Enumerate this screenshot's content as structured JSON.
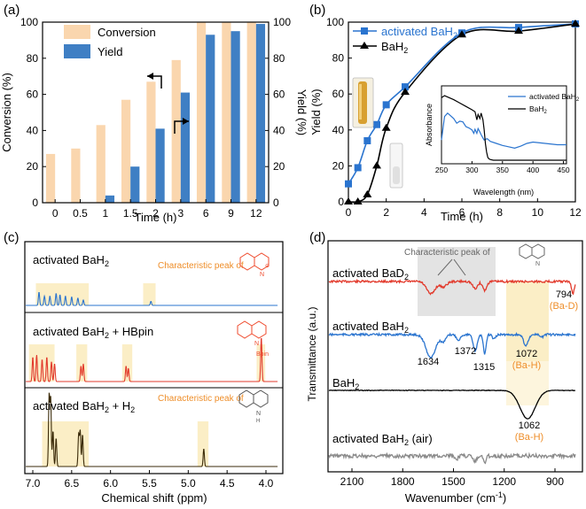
{
  "colors": {
    "conversion": "#fad6ae",
    "yield": "#3f7fc4",
    "blue_line": "#2a74cf",
    "red_line": "#e23a2c",
    "black_line": "#000000",
    "gray_line": "#8a8a8a",
    "highlight": "#fbeec6",
    "orange_text": "#ee8d28",
    "dark_brown": "#3a2a08",
    "orange_peak": "#ef4a2c"
  },
  "chart_data": [
    {
      "panel": "(a)",
      "type": "bar",
      "categories": [
        "0",
        "0.5",
        "1",
        "1.5",
        "2",
        "3",
        "6",
        "9",
        "12"
      ],
      "series": [
        {
          "name": "Conversion",
          "values": [
            27,
            30,
            43,
            57,
            67,
            79,
            100,
            100,
            100
          ]
        },
        {
          "name": "Yield",
          "values": [
            0,
            0,
            4,
            20,
            41,
            61,
            93,
            95,
            99
          ]
        }
      ],
      "xlabel": "Time (h)",
      "ylabel_left": "Conversion (%)",
      "ylabel_right": "Yield (%)",
      "ylim": [
        0,
        100
      ],
      "yticks": [
        "0",
        "20",
        "40",
        "60",
        "80",
        "100"
      ]
    },
    {
      "panel": "(b)",
      "type": "line",
      "series": [
        {
          "name": "activated BaH",
          "sub": "2",
          "x": [
            0,
            0.5,
            1,
            1.5,
            2,
            3,
            6,
            9,
            12
          ],
          "y": [
            10,
            19,
            34,
            43,
            54,
            64,
            94,
            97,
            99
          ]
        },
        {
          "name": "BaH",
          "sub": "2",
          "x": [
            0,
            0.5,
            1,
            1.5,
            2,
            3,
            6,
            9,
            12
          ],
          "y": [
            0,
            0,
            4,
            20,
            41,
            61,
            93,
            95,
            99
          ]
        }
      ],
      "xlabel": "Time (h)",
      "ylabel": "Yield (%)",
      "xlim": [
        0,
        12
      ],
      "ylim": [
        0,
        100
      ],
      "xticks": [
        "0",
        "2",
        "4",
        "6",
        "8",
        "10",
        "12"
      ],
      "yticks": [
        "0",
        "20",
        "40",
        "60",
        "80",
        "100"
      ],
      "inset": {
        "type": "line",
        "xlabel": "Wavelength (nm)",
        "ylabel": "Absorbance",
        "xlim": [
          250,
          455
        ],
        "xticks": [
          "250",
          "300",
          "350",
          "400",
          "450"
        ],
        "series": [
          {
            "name": "activated BaH",
            "sub": "2",
            "x": [
              250,
              255,
              260,
              265,
              270,
              275,
              280,
              285,
              290,
              295,
              300,
              303,
              305,
              308,
              310,
              313,
              315,
              318,
              320,
              322,
              325,
              330,
              340,
              350,
              360,
              370,
              380,
              390,
              400,
              410,
              420,
              430,
              440,
              450,
              455
            ],
            "y": [
              0.3,
              0.65,
              0.7,
              0.66,
              0.62,
              0.55,
              0.58,
              0.57,
              0.5,
              0.48,
              0.45,
              0.4,
              0.46,
              0.4,
              0.47,
              0.42,
              0.38,
              0.33,
              0.3,
              0.31,
              0.32,
              0.28,
              0.25,
              0.22,
              0.2,
              0.18,
              0.21,
              0.25,
              0.27,
              0.26,
              0.25,
              0.24,
              0.23,
              0.23,
              0.23
            ]
          },
          {
            "name": "BaH",
            "sub": "2",
            "x": [
              250,
              255,
              260,
              265,
              270,
              280,
              290,
              300,
              305,
              308,
              310,
              313,
              315,
              318,
              320,
              322,
              324,
              326,
              328,
              330,
              335,
              340,
              350,
              400,
              455
            ],
            "y": [
              0.93,
              0.96,
              0.94,
              0.92,
              0.9,
              0.85,
              0.8,
              0.75,
              0.72,
              0.6,
              0.68,
              0.62,
              0.7,
              0.6,
              0.45,
              0.25,
              0.12,
              0.04,
              0.02,
              0.01,
              0.0,
              0.0,
              0.0,
              0.0,
              0.0
            ]
          }
        ]
      }
    },
    {
      "panel": "(c)",
      "type": "line",
      "xlabel": "Chemical shift (ppm)",
      "xticks": [
        "7.0",
        "6.5",
        "6.0",
        "5.5",
        "5.0",
        "4.5",
        "4.0"
      ],
      "spectra": [
        {
          "name": "activated BaH",
          "sub": "2",
          "note": "Characteristic peak of",
          "peaks": [
            [
              6.92,
              0.5
            ],
            [
              6.85,
              0.35
            ],
            [
              6.78,
              0.35
            ],
            [
              6.7,
              0.45
            ],
            [
              6.65,
              0.4
            ],
            [
              6.58,
              0.35
            ],
            [
              6.5,
              0.32
            ],
            [
              6.42,
              0.28
            ],
            [
              6.35,
              0.2
            ],
            [
              5.48,
              0.15
            ]
          ]
        },
        {
          "name": "activated BaH",
          "sub": "2",
          "suffix": " + HBpin",
          "peaks": [
            [
              7.0,
              0.55
            ],
            [
              6.95,
              0.6
            ],
            [
              6.88,
              0.5
            ],
            [
              6.82,
              0.55
            ],
            [
              6.76,
              0.45
            ],
            [
              6.72,
              0.4
            ],
            [
              6.38,
              0.35
            ],
            [
              6.35,
              0.4
            ],
            [
              5.8,
              0.35
            ],
            [
              5.77,
              0.3
            ],
            [
              4.06,
              1.0
            ]
          ]
        },
        {
          "name": "activated BaH",
          "sub": "2",
          "suffix": " + H",
          "suffix_sub": "2",
          "note": "Characteristic peak of",
          "peaks": [
            [
              6.79,
              1.0
            ],
            [
              6.77,
              0.95
            ],
            [
              6.74,
              0.5
            ],
            [
              6.7,
              0.4
            ],
            [
              6.41,
              0.45
            ],
            [
              6.39,
              0.5
            ],
            [
              6.36,
              0.45
            ],
            [
              4.8,
              0.25
            ]
          ]
        }
      ]
    },
    {
      "panel": "(d)",
      "type": "line",
      "xlabel": "Wavenumber (cm",
      "xlabel_sup": "-1",
      "xlabel_end": ")",
      "ylabel": "Transmittance (a.u.)",
      "xticks": [
        "2100",
        "1800",
        "1500",
        "1200",
        "900"
      ],
      "traces": [
        {
          "name": "activated BaD",
          "sub": "2",
          "note": "Characteristic peak of",
          "bands": [
            "794",
            "(Ba-D)"
          ]
        },
        {
          "name": "activated BaH",
          "sub": "2",
          "bands": [
            "1634",
            "1372",
            "1315",
            "1072",
            "(Ba-H)"
          ]
        },
        {
          "name": "BaH",
          "sub": "2",
          "bands": [
            "1062",
            "(Ba-H)"
          ]
        },
        {
          "name": "activated BaH",
          "sub": "2",
          "suffix": " (air)"
        }
      ]
    }
  ],
  "panels": {
    "a": {
      "label": "(a)",
      "legend": [
        "Conversion",
        "Yield"
      ]
    },
    "b": {
      "label": "(b)"
    },
    "c": {
      "label": "(c)"
    },
    "d": {
      "label": "(d)"
    }
  }
}
